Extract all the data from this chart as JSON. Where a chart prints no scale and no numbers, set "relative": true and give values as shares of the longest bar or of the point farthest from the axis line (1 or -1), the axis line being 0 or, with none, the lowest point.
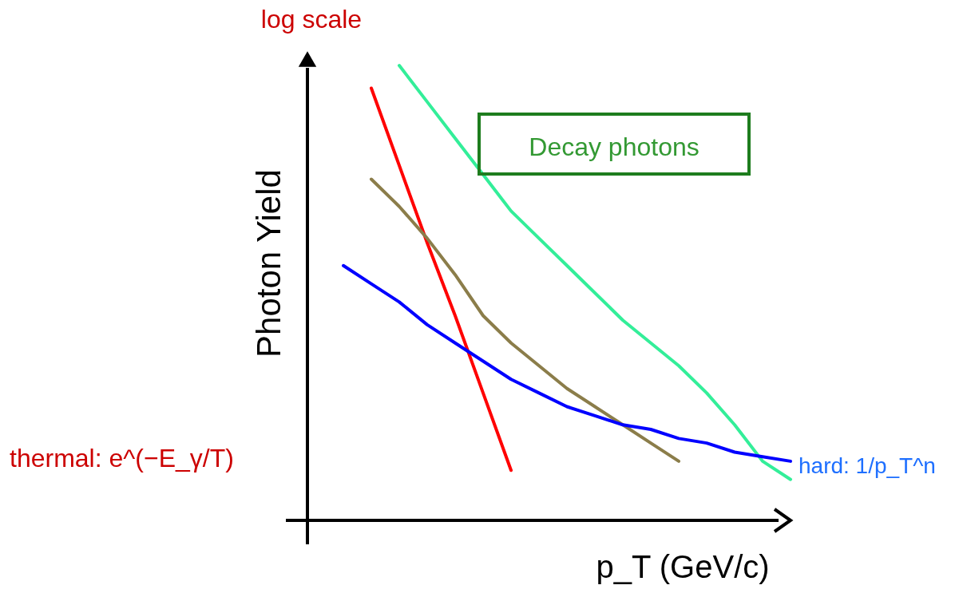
{
  "chart_data": {
    "type": "line",
    "relative": true,
    "xlabel": "p_T (GeV/c)",
    "ylabel": "Photon Yield",
    "annotations": [
      "log scale",
      "Decay photons",
      "thermal: e^(−E_γ/T)",
      "hard: 1/p_T^n"
    ],
    "categories": [
      null,
      null,
      null,
      null,
      null,
      null,
      null,
      null,
      null,
      null,
      null,
      null,
      null,
      null,
      null,
      null,
      null
    ],
    "series": [
      {
        "color": "#ff0000",
        "values": [
          null,
          0.95,
          0.78,
          0.61,
          0.45,
          0.28,
          0.11,
          null,
          null,
          null,
          null,
          null,
          null,
          null,
          null,
          null,
          null
        ]
      },
      {
        "color": "#33ee99",
        "values": [
          null,
          null,
          1.0,
          0.92,
          0.84,
          0.76,
          0.68,
          0.62,
          0.56,
          0.5,
          0.44,
          0.39,
          0.34,
          0.28,
          0.21,
          0.13,
          0.09
        ]
      },
      {
        "color": "#8b7d4a",
        "values": [
          null,
          0.75,
          0.69,
          0.62,
          0.54,
          0.45,
          0.39,
          0.34,
          0.29,
          0.25,
          0.21,
          0.17,
          0.13,
          null,
          null,
          null,
          null
        ]
      },
      {
        "color": "#0000ff",
        "values": [
          0.56,
          0.52,
          0.48,
          0.43,
          0.39,
          0.35,
          0.31,
          0.28,
          0.25,
          0.23,
          0.21,
          0.2,
          0.18,
          0.17,
          0.15,
          0.14,
          0.13
        ]
      }
    ]
  }
}
